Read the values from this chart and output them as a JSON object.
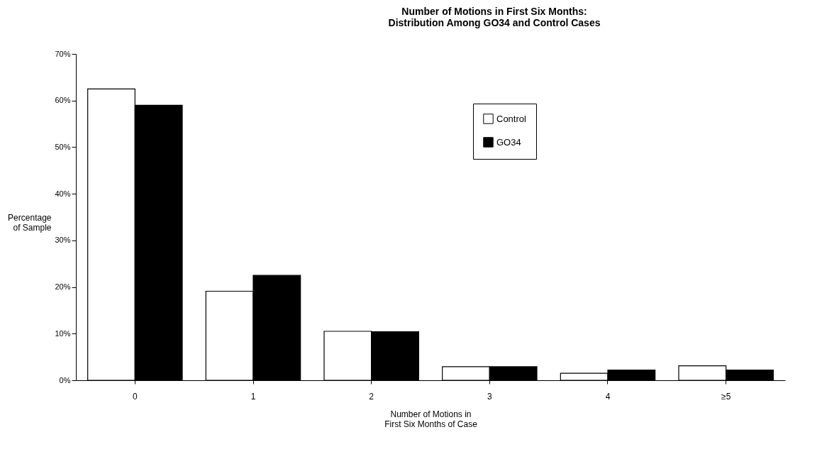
{
  "chart_data": {
    "type": "bar",
    "title": "Number of Motions in First Six Months:\nDistribution Among GO34 and Control Cases",
    "xlabel": "Number of Motions in\nFirst Six Months of Case",
    "ylabel": "Percentage\nof Sample",
    "categories": [
      "0",
      "1",
      "2",
      "3",
      "4",
      "≥5"
    ],
    "series": [
      {
        "name": "Control",
        "color": "#ffffff",
        "values": [
          62.5,
          19.1,
          10.5,
          2.9,
          1.5,
          3.1
        ]
      },
      {
        "name": "GO34",
        "color": "#000000",
        "values": [
          59,
          22.5,
          10.4,
          2.9,
          2.2,
          2.2
        ]
      }
    ],
    "ylim": [
      0,
      70
    ],
    "yticks": [
      {
        "value": 0,
        "label": "0%"
      },
      {
        "value": 10,
        "label": "10%"
      },
      {
        "value": 20,
        "label": "20%"
      },
      {
        "value": 30,
        "label": "30%"
      },
      {
        "value": 40,
        "label": "40%"
      },
      {
        "value": 50,
        "label": "50%"
      },
      {
        "value": 60,
        "label": "60%"
      },
      {
        "value": 70,
        "label": "70%"
      }
    ],
    "grid": false,
    "legend": "top right"
  }
}
